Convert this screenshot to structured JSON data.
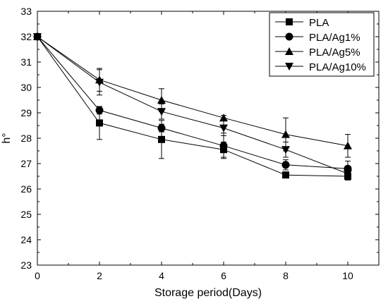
{
  "chart_data": {
    "type": "line",
    "xlabel": "Storage period(Days)",
    "ylabel": "h°",
    "xlim": [
      0,
      11
    ],
    "ylim": [
      23,
      33
    ],
    "xticks": [
      0,
      2,
      4,
      6,
      8,
      10
    ],
    "yticks": [
      23,
      24,
      25,
      26,
      27,
      28,
      29,
      30,
      31,
      32,
      33
    ],
    "x": [
      0,
      2,
      4,
      6,
      8,
      10
    ],
    "legend_position": "top-right",
    "grid": false,
    "series": [
      {
        "name": "PLA",
        "marker": "square",
        "values": [
          32.0,
          28.6,
          27.95,
          27.55,
          26.55,
          26.5
        ],
        "error": [
          0,
          0.65,
          0.75,
          0.3,
          0.1,
          0.15
        ]
      },
      {
        "name": "PLA/Ag1%",
        "marker": "circle",
        "values": [
          32.0,
          29.1,
          28.4,
          27.7,
          26.95,
          26.8
        ],
        "error": [
          0,
          0.15,
          0.15,
          0.5,
          0.2,
          0.3
        ]
      },
      {
        "name": "PLA/Ag5%",
        "marker": "triangle-up",
        "values": [
          32.0,
          30.3,
          29.5,
          28.8,
          28.15,
          27.7
        ],
        "error": [
          0,
          0.45,
          0.45,
          0.1,
          0.65,
          0.45
        ]
      },
      {
        "name": "PLA/Ag10%",
        "marker": "triangle-down",
        "values": [
          32.0,
          30.2,
          29.05,
          28.4,
          27.55,
          26.6
        ],
        "error": [
          0,
          0.5,
          0.3,
          0.3,
          0.3,
          0.15
        ]
      }
    ],
    "color": "#000000"
  }
}
